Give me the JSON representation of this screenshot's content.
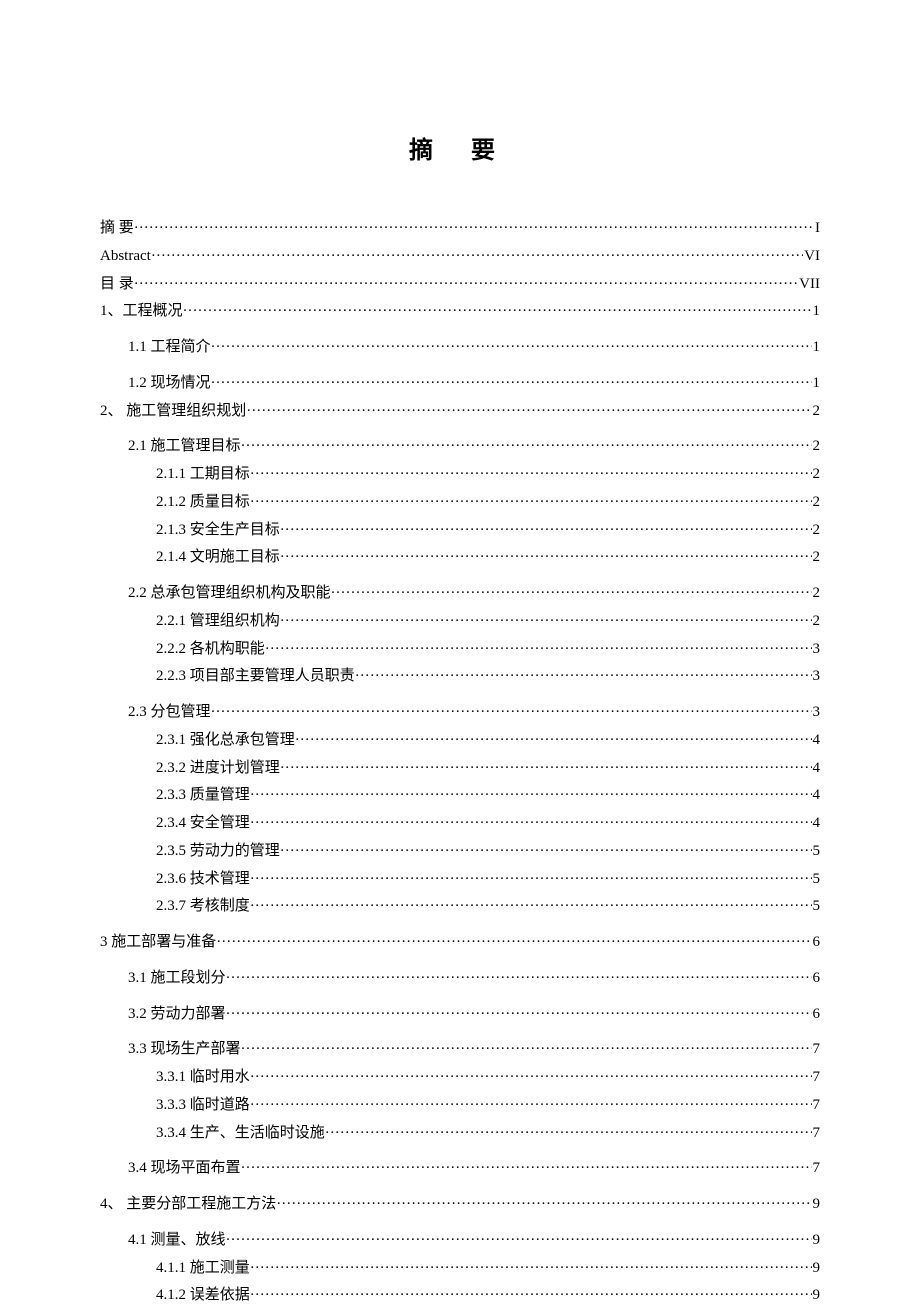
{
  "title": "摘  要",
  "toc": [
    {
      "label": "摘    要",
      "page": "I",
      "indent": 0,
      "groupTop": false
    },
    {
      "label": "Abstract",
      "page": "VI",
      "indent": 0,
      "groupTop": false
    },
    {
      "label": "目    录",
      "page": "VII",
      "indent": 0,
      "groupTop": false
    },
    {
      "label": "1、工程概况",
      "page": "1",
      "indent": 0,
      "groupTop": false
    },
    {
      "label": "1.1  工程简介",
      "page": "1",
      "indent": 1,
      "groupTop": true
    },
    {
      "label": "1.2  现场情况",
      "page": "1",
      "indent": 1,
      "groupTop": true
    },
    {
      "label": "2、  施工管理组织规划",
      "page": "2",
      "indent": 0,
      "groupTop": false
    },
    {
      "label": "2.1  施工管理目标",
      "page": "2",
      "indent": 1,
      "groupTop": true
    },
    {
      "label": "2.1.1  工期目标",
      "page": "2",
      "indent": 2,
      "groupTop": false
    },
    {
      "label": "2.1.2  质量目标",
      "page": "2",
      "indent": 2,
      "groupTop": false
    },
    {
      "label": "2.1.3  安全生产目标",
      "page": "2",
      "indent": 2,
      "groupTop": false
    },
    {
      "label": "2.1.4  文明施工目标",
      "page": "2",
      "indent": 2,
      "groupTop": false
    },
    {
      "label": "2.2  总承包管理组织机构及职能",
      "page": "2",
      "indent": 1,
      "groupTop": true
    },
    {
      "label": "2.2.1  管理组织机构",
      "page": "2",
      "indent": 2,
      "groupTop": false
    },
    {
      "label": "2.2.2  各机构职能",
      "page": "3",
      "indent": 2,
      "groupTop": false
    },
    {
      "label": "2.2.3  项目部主要管理人员职责",
      "page": "3",
      "indent": 2,
      "groupTop": false
    },
    {
      "label": "2.3  分包管理",
      "page": "3",
      "indent": 1,
      "groupTop": true
    },
    {
      "label": "2.3.1  强化总承包管理",
      "page": "4",
      "indent": 2,
      "groupTop": false
    },
    {
      "label": "2.3.2  进度计划管理",
      "page": "4",
      "indent": 2,
      "groupTop": false
    },
    {
      "label": "2.3.3  质量管理",
      "page": "4",
      "indent": 2,
      "groupTop": false
    },
    {
      "label": "2.3.4  安全管理",
      "page": "4",
      "indent": 2,
      "groupTop": false
    },
    {
      "label": "2.3.5  劳动力的管理",
      "page": "5",
      "indent": 2,
      "groupTop": false
    },
    {
      "label": "2.3.6  技术管理",
      "page": "5",
      "indent": 2,
      "groupTop": false
    },
    {
      "label": "2.3.7  考核制度",
      "page": "5",
      "indent": 2,
      "groupTop": false
    },
    {
      "label": "3  施工部署与准备",
      "page": "6",
      "indent": 0,
      "groupTop": true
    },
    {
      "label": "3.1  施工段划分",
      "page": "6",
      "indent": 1,
      "groupTop": true
    },
    {
      "label": "3.2 劳动力部署",
      "page": "6",
      "indent": 1,
      "groupTop": true
    },
    {
      "label": "3.3  现场生产部署",
      "page": "7",
      "indent": 1,
      "groupTop": true
    },
    {
      "label": "3.3.1  临时用水",
      "page": "7",
      "indent": 2,
      "groupTop": false
    },
    {
      "label": "3.3.3  临时道路",
      "page": "7",
      "indent": 2,
      "groupTop": false
    },
    {
      "label": "3.3.4  生产、生活临时设施",
      "page": "7",
      "indent": 2,
      "groupTop": false
    },
    {
      "label": "3.4  现场平面布置",
      "page": "7",
      "indent": 1,
      "groupTop": true
    },
    {
      "label": "4、  主要分部工程施工方法",
      "page": "9",
      "indent": 0,
      "groupTop": true
    },
    {
      "label": "4.1  测量、放线",
      "page": "9",
      "indent": 1,
      "groupTop": true
    },
    {
      "label": "4.1.1  施工测量",
      "page": "9",
      "indent": 2,
      "groupTop": false
    },
    {
      "label": "4.1.2  误差依据",
      "page": "9",
      "indent": 2,
      "groupTop": false
    }
  ]
}
